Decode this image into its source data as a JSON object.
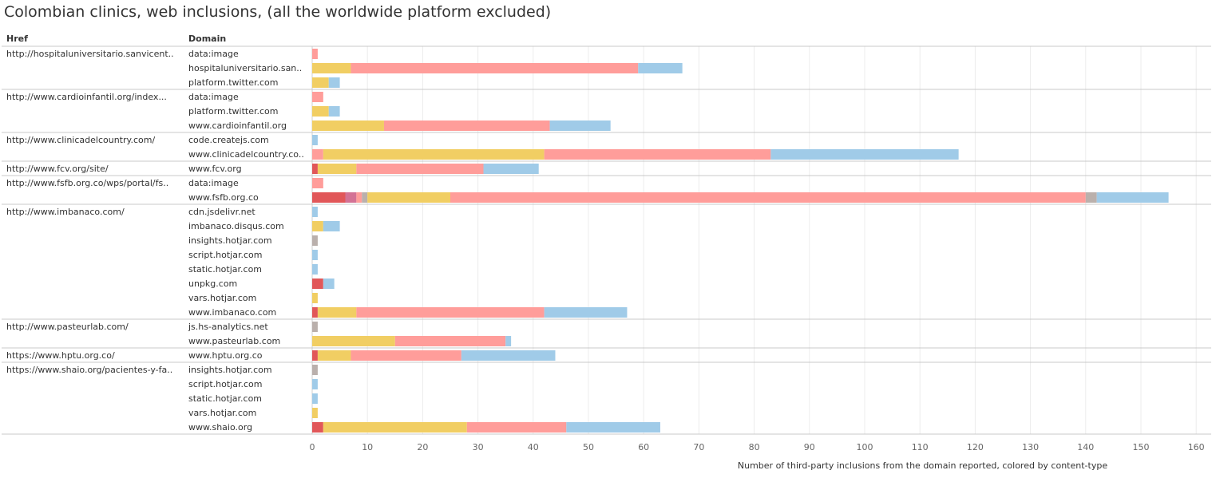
{
  "title": "Colombian clinics, web inclusions, (all the worldwide platform excluded)",
  "columns": {
    "href": "Href",
    "domain": "Domain"
  },
  "colors": {
    "red": "#e15759",
    "pink": "#d37295",
    "salmon_light": "#ff9d9a",
    "gray": "#bab0ac",
    "yellow": "#f1ce63",
    "salmon": "#ff9d9a",
    "blue": "#a0cbe8"
  },
  "chart_data": {
    "type": "bar",
    "orientation": "horizontal",
    "stacked": true,
    "xlabel": "Number of third-party inclusions from the domain reported, colored by content-type",
    "xlim": [
      0,
      160
    ],
    "xticks": [
      0,
      10,
      20,
      30,
      40,
      50,
      60,
      70,
      80,
      90,
      100,
      110,
      120,
      130,
      140,
      150,
      160
    ],
    "grid": "vertical",
    "groups": [
      {
        "href": "http://hospitaluniversitario.sanvicent..",
        "rows": [
          {
            "domain": "data:image",
            "segments": [
              [
                "salmon",
                1
              ]
            ]
          },
          {
            "domain": "hospitaluniversitario.san..",
            "segments": [
              [
                "yellow",
                7
              ],
              [
                "salmon",
                52
              ],
              [
                "blue",
                8
              ]
            ]
          },
          {
            "domain": "platform.twitter.com",
            "segments": [
              [
                "yellow",
                3
              ],
              [
                "blue",
                2
              ]
            ]
          }
        ]
      },
      {
        "href": "http://www.cardioinfantil.org/index...",
        "rows": [
          {
            "domain": "data:image",
            "segments": [
              [
                "salmon",
                2
              ]
            ]
          },
          {
            "domain": "platform.twitter.com",
            "segments": [
              [
                "yellow",
                3
              ],
              [
                "blue",
                2
              ]
            ]
          },
          {
            "domain": "www.cardioinfantil.org",
            "segments": [
              [
                "yellow",
                13
              ],
              [
                "salmon",
                30
              ],
              [
                "blue",
                11
              ]
            ]
          }
        ]
      },
      {
        "href": "http://www.clinicadelcountry.com/",
        "rows": [
          {
            "domain": "code.createjs.com",
            "segments": [
              [
                "blue",
                1
              ]
            ]
          },
          {
            "domain": "www.clinicadelcountry.co..",
            "segments": [
              [
                "salmon",
                2
              ],
              [
                "yellow",
                40
              ],
              [
                "salmon",
                41
              ],
              [
                "blue",
                34
              ]
            ]
          }
        ]
      },
      {
        "href": "http://www.fcv.org/site/",
        "rows": [
          {
            "domain": "www.fcv.org",
            "segments": [
              [
                "red",
                1
              ],
              [
                "yellow",
                7
              ],
              [
                "salmon",
                23
              ],
              [
                "blue",
                10
              ]
            ]
          }
        ]
      },
      {
        "href": "http://www.fsfb.org.co/wps/portal/fs..",
        "rows": [
          {
            "domain": "data:image",
            "segments": [
              [
                "salmon",
                2
              ]
            ]
          },
          {
            "domain": "www.fsfb.org.co",
            "segments": [
              [
                "red",
                6
              ],
              [
                "pink",
                2
              ],
              [
                "salmon_light",
                1
              ],
              [
                "gray",
                1
              ],
              [
                "yellow",
                15
              ],
              [
                "salmon",
                115
              ],
              [
                "gray",
                2
              ],
              [
                "blue",
                13
              ]
            ]
          }
        ]
      },
      {
        "href": "http://www.imbanaco.com/",
        "rows": [
          {
            "domain": "cdn.jsdelivr.net",
            "segments": [
              [
                "blue",
                1
              ]
            ]
          },
          {
            "domain": "imbanaco.disqus.com",
            "segments": [
              [
                "yellow",
                2
              ],
              [
                "blue",
                3
              ]
            ]
          },
          {
            "domain": "insights.hotjar.com",
            "segments": [
              [
                "gray",
                1
              ]
            ]
          },
          {
            "domain": "script.hotjar.com",
            "segments": [
              [
                "blue",
                1
              ]
            ]
          },
          {
            "domain": "static.hotjar.com",
            "segments": [
              [
                "blue",
                1
              ]
            ]
          },
          {
            "domain": "unpkg.com",
            "segments": [
              [
                "red",
                2
              ],
              [
                "blue",
                2
              ]
            ]
          },
          {
            "domain": "vars.hotjar.com",
            "segments": [
              [
                "yellow",
                1
              ]
            ]
          },
          {
            "domain": "www.imbanaco.com",
            "segments": [
              [
                "red",
                1
              ],
              [
                "yellow",
                7
              ],
              [
                "salmon",
                34
              ],
              [
                "blue",
                15
              ]
            ]
          }
        ]
      },
      {
        "href": "http://www.pasteurlab.com/",
        "rows": [
          {
            "domain": "js.hs-analytics.net",
            "segments": [
              [
                "gray",
                1
              ]
            ]
          },
          {
            "domain": "www.pasteurlab.com",
            "segments": [
              [
                "yellow",
                15
              ],
              [
                "salmon",
                20
              ],
              [
                "blue",
                1
              ]
            ]
          }
        ]
      },
      {
        "href": "https://www.hptu.org.co/",
        "rows": [
          {
            "domain": "www.hptu.org.co",
            "segments": [
              [
                "red",
                1
              ],
              [
                "yellow",
                6
              ],
              [
                "salmon",
                20
              ],
              [
                "blue",
                17
              ]
            ]
          }
        ]
      },
      {
        "href": "https://www.shaio.org/pacientes-y-fa..",
        "rows": [
          {
            "domain": "insights.hotjar.com",
            "segments": [
              [
                "gray",
                1
              ]
            ]
          },
          {
            "domain": "script.hotjar.com",
            "segments": [
              [
                "blue",
                1
              ]
            ]
          },
          {
            "domain": "static.hotjar.com",
            "segments": [
              [
                "blue",
                1
              ]
            ]
          },
          {
            "domain": "vars.hotjar.com",
            "segments": [
              [
                "yellow",
                1
              ]
            ]
          },
          {
            "domain": "www.shaio.org",
            "segments": [
              [
                "red",
                2
              ],
              [
                "yellow",
                26
              ],
              [
                "salmon",
                18
              ],
              [
                "blue",
                17
              ]
            ]
          }
        ]
      }
    ]
  }
}
